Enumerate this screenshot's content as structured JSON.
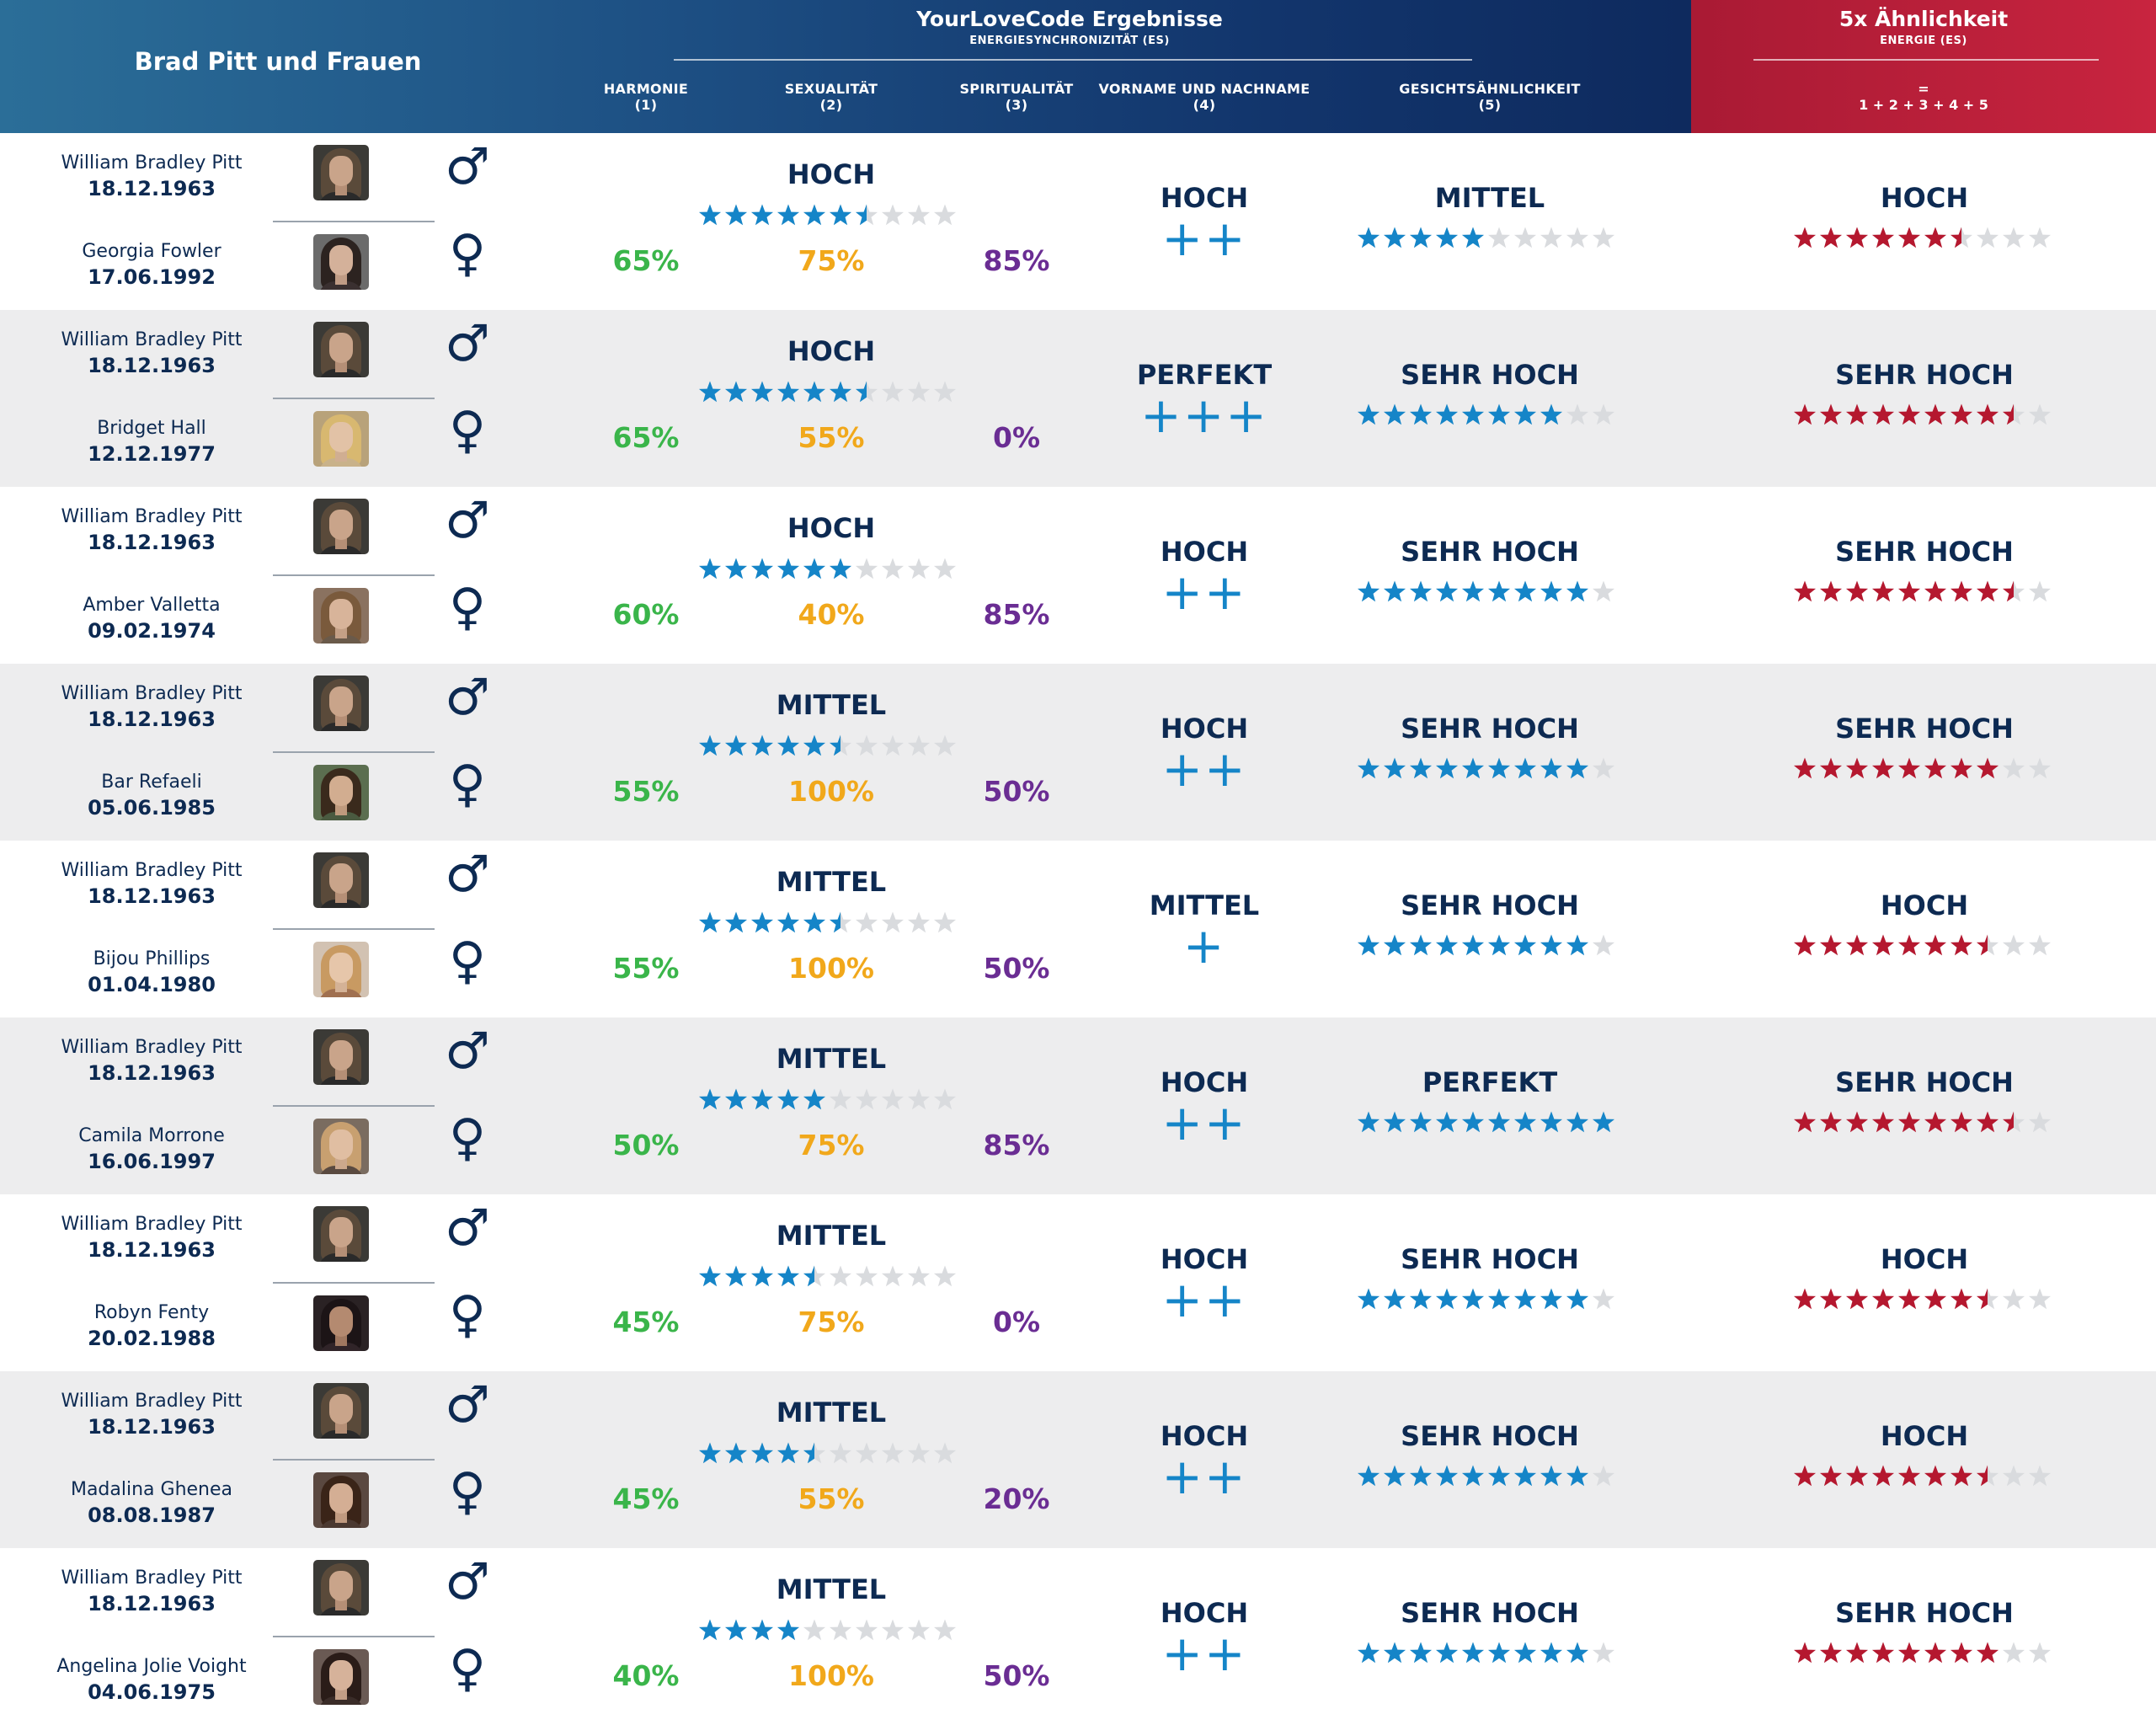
{
  "header": {
    "left_title": "Brad Pitt und Frauen",
    "main_title": "YourLoveCode Ergebnisse",
    "main_subtitle": "ENERGIESYNCHRONIZITÄT (ES)",
    "columns": [
      {
        "label": "HARMONIE",
        "num": "(1)"
      },
      {
        "label": "SEXUALITÄT",
        "num": "(2)"
      },
      {
        "label": "SPIRITUALITÄT",
        "num": "(3)"
      },
      {
        "label": "VORNAME UND NACHNAME",
        "num": "(4)"
      },
      {
        "label": "GESICHTSÄHNLICHKEIT",
        "num": "(5)"
      }
    ],
    "red_title": "5x Ähnlichkeit",
    "red_subtitle": "ENERGIE (ES)",
    "red_eq_symbol": "=",
    "red_formula": "1 + 2 + 3 + 4 + 5"
  },
  "colors": {
    "star_blue": "#1585c8",
    "star_red": "#b5182f",
    "star_empty": "#d9dbde",
    "harmony": "#3ab54a",
    "sexuality": "#f1a81b",
    "spirituality": "#6a2d93",
    "text_dark": "#0d2a52"
  },
  "icons": {
    "male": "♂",
    "female": "♀"
  },
  "rows": [
    {
      "p1": {
        "name": "William Bradley Pitt",
        "date": "18.12.1963"
      },
      "p2": {
        "name": "Georgia Fowler",
        "date": "17.06.1992"
      },
      "harmony": "65%",
      "sexuality": "75%",
      "spirituality": "85%",
      "es_level": "HOCH",
      "es_stars": 6.5,
      "name_level": "HOCH",
      "name_plus": "++",
      "face_level": "MITTEL",
      "face_stars": 5,
      "total_level": "HOCH",
      "total_stars": 6.5
    },
    {
      "p1": {
        "name": "William Bradley Pitt",
        "date": "18.12.1963"
      },
      "p2": {
        "name": "Bridget Hall",
        "date": "12.12.1977"
      },
      "harmony": "65%",
      "sexuality": "55%",
      "spirituality": "0%",
      "es_level": "HOCH",
      "es_stars": 6.5,
      "name_level": "PERFEKT",
      "name_plus": "+++",
      "face_level": "SEHR HOCH",
      "face_stars": 8,
      "total_level": "SEHR HOCH",
      "total_stars": 8.5
    },
    {
      "p1": {
        "name": "William Bradley Pitt",
        "date": "18.12.1963"
      },
      "p2": {
        "name": "Amber Valletta",
        "date": "09.02.1974"
      },
      "harmony": "60%",
      "sexuality": "40%",
      "spirituality": "85%",
      "es_level": "HOCH",
      "es_stars": 6,
      "name_level": "HOCH",
      "name_plus": "++",
      "face_level": "SEHR HOCH",
      "face_stars": 9,
      "total_level": "SEHR HOCH",
      "total_stars": 8.5
    },
    {
      "p1": {
        "name": "William Bradley Pitt",
        "date": "18.12.1963"
      },
      "p2": {
        "name": "Bar Refaeli",
        "date": "05.06.1985"
      },
      "harmony": "55%",
      "sexuality": "100%",
      "spirituality": "50%",
      "es_level": "MITTEL",
      "es_stars": 5.5,
      "name_level": "HOCH",
      "name_plus": "++",
      "face_level": "SEHR HOCH",
      "face_stars": 9,
      "total_level": "SEHR HOCH",
      "total_stars": 8
    },
    {
      "p1": {
        "name": "William Bradley Pitt",
        "date": "18.12.1963"
      },
      "p2": {
        "name": "Bijou Phillips",
        "date": "01.04.1980"
      },
      "harmony": "55%",
      "sexuality": "100%",
      "spirituality": "50%",
      "es_level": "MITTEL",
      "es_stars": 5.5,
      "name_level": "MITTEL",
      "name_plus": "+",
      "face_level": "SEHR HOCH",
      "face_stars": 9,
      "total_level": "HOCH",
      "total_stars": 7.5
    },
    {
      "p1": {
        "name": "William Bradley Pitt",
        "date": "18.12.1963"
      },
      "p2": {
        "name": "Camila Morrone",
        "date": "16.06.1997"
      },
      "harmony": "50%",
      "sexuality": "75%",
      "spirituality": "85%",
      "es_level": "MITTEL",
      "es_stars": 5,
      "name_level": "HOCH",
      "name_plus": "++",
      "face_level": "PERFEKT",
      "face_stars": 10,
      "total_level": "SEHR HOCH",
      "total_stars": 8.5
    },
    {
      "p1": {
        "name": "William Bradley Pitt",
        "date": "18.12.1963"
      },
      "p2": {
        "name": "Robyn Fenty",
        "date": "20.02.1988"
      },
      "harmony": "45%",
      "sexuality": "75%",
      "spirituality": "0%",
      "es_level": "MITTEL",
      "es_stars": 4.5,
      "name_level": "HOCH",
      "name_plus": "++",
      "face_level": "SEHR HOCH",
      "face_stars": 9,
      "total_level": "HOCH",
      "total_stars": 7.5
    },
    {
      "p1": {
        "name": "William Bradley Pitt",
        "date": "18.12.1963"
      },
      "p2": {
        "name": "Madalina Ghenea",
        "date": "08.08.1987"
      },
      "harmony": "45%",
      "sexuality": "55%",
      "spirituality": "20%",
      "es_level": "MITTEL",
      "es_stars": 4.5,
      "name_level": "HOCH",
      "name_plus": "++",
      "face_level": "SEHR HOCH",
      "face_stars": 9,
      "total_level": "HOCH",
      "total_stars": 7.5
    },
    {
      "p1": {
        "name": "William Bradley Pitt",
        "date": "18.12.1963"
      },
      "p2": {
        "name": "Angelina Jolie Voight",
        "date": "04.06.1975"
      },
      "harmony": "40%",
      "sexuality": "100%",
      "spirituality": "50%",
      "es_level": "MITTEL",
      "es_stars": 4,
      "name_level": "HOCH",
      "name_plus": "++",
      "face_level": "SEHR HOCH",
      "face_stars": 9,
      "total_level": "SEHR HOCH",
      "total_stars": 8
    }
  ]
}
